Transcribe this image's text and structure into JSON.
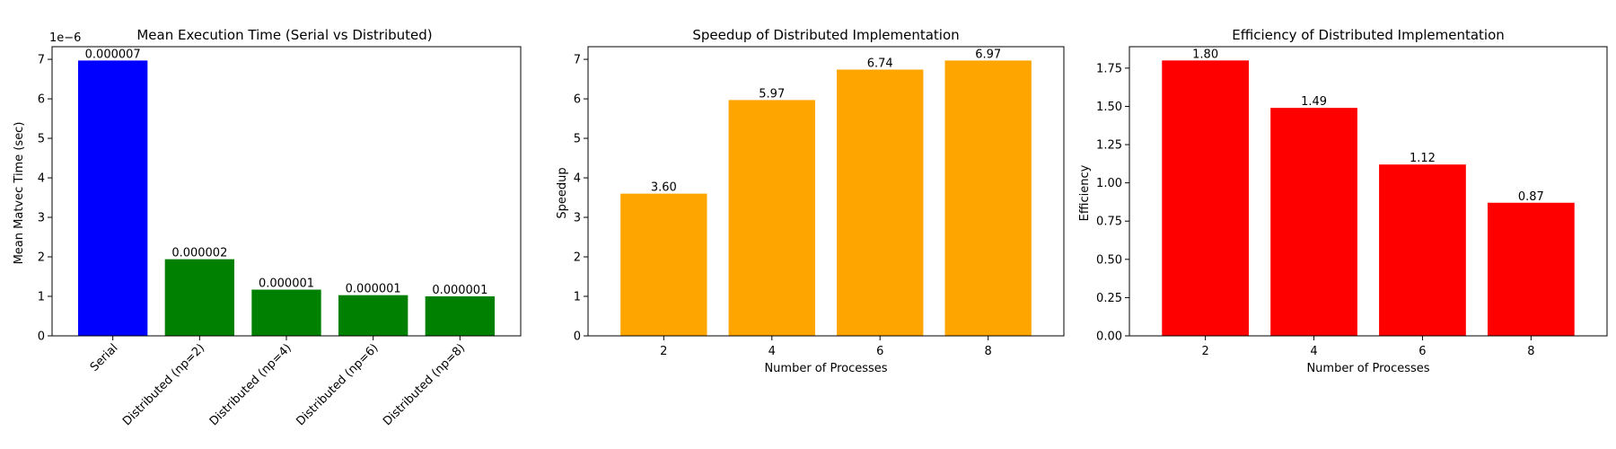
{
  "chart_data": [
    {
      "type": "bar",
      "title": "Mean Execution Time (Serial vs Distributed)",
      "xlabel": "",
      "ylabel": "Mean Matvec Time (sec)",
      "y_offset_text": "1e−6",
      "categories": [
        "Serial",
        "Distributed (np=2)",
        "Distributed (np=4)",
        "Distributed (np=6)",
        "Distributed (np=8)"
      ],
      "values": [
        6.97e-06,
        1.94e-06,
        1.17e-06,
        1.03e-06,
        1e-06
      ],
      "bar_labels": [
        "0.000007",
        "0.000002",
        "0.000001",
        "0.000001",
        "0.000001"
      ],
      "colors": [
        "#0000ff",
        "#008000",
        "#008000",
        "#008000",
        "#008000"
      ],
      "ylim": [
        0,
        7.32e-06
      ],
      "yticks": [
        0,
        1,
        2,
        3,
        4,
        5,
        6,
        7
      ],
      "ytick_scale": 1e-06,
      "xtick_rotation": 45,
      "grid": false
    },
    {
      "type": "bar",
      "title": "Speedup of Distributed Implementation",
      "xlabel": "Number of Processes",
      "ylabel": "Speedup",
      "categories": [
        "2",
        "4",
        "6",
        "8"
      ],
      "values": [
        3.6,
        5.97,
        6.74,
        6.97
      ],
      "bar_labels": [
        "3.60",
        "5.97",
        "6.74",
        "6.97"
      ],
      "colors": [
        "#ffa500",
        "#ffa500",
        "#ffa500",
        "#ffa500"
      ],
      "ylim": [
        0,
        7.32
      ],
      "yticks": [
        0,
        1,
        2,
        3,
        4,
        5,
        6,
        7
      ],
      "grid": false
    },
    {
      "type": "bar",
      "title": "Efficiency of Distributed Implementation",
      "xlabel": "Number of Processes",
      "ylabel": "Efficiency",
      "categories": [
        "2",
        "4",
        "6",
        "8"
      ],
      "values": [
        1.8,
        1.49,
        1.12,
        0.87
      ],
      "bar_labels": [
        "1.80",
        "1.49",
        "1.12",
        "0.87"
      ],
      "colors": [
        "#ff0000",
        "#ff0000",
        "#ff0000",
        "#ff0000"
      ],
      "ylim": [
        0,
        1.89
      ],
      "yticks": [
        "0.00",
        "0.25",
        "0.50",
        "0.75",
        "1.00",
        "1.25",
        "1.50",
        "1.75"
      ],
      "grid": false
    }
  ]
}
